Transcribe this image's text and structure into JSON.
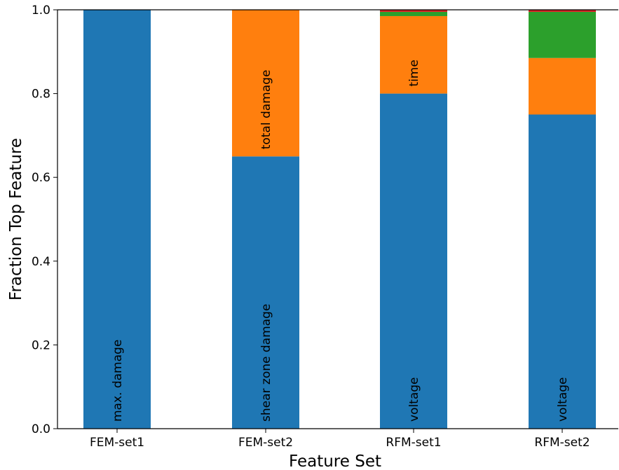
{
  "chart_data": {
    "type": "bar",
    "stacked": true,
    "xlabel": "Feature Set",
    "ylabel": "Fraction Top Feature",
    "ylim": [
      0,
      1.0
    ],
    "yticks": [
      "0.0",
      "0.2",
      "0.4",
      "0.6",
      "0.8",
      "1.0"
    ],
    "categories": [
      "FEM-set1",
      "FEM-set2",
      "RFM-set1",
      "RFM-set2"
    ],
    "colors": [
      "#1f77b4",
      "#ff7f0e",
      "#2ca02c",
      "#d62728"
    ],
    "series": [
      {
        "values": [
          1.0,
          0.65,
          0.8,
          0.75
        ]
      },
      {
        "values": [
          0.0,
          0.35,
          0.185,
          0.135
        ]
      },
      {
        "values": [
          0.0,
          0.0,
          0.01,
          0.11
        ]
      },
      {
        "values": [
          0.0,
          0.0,
          0.005,
          0.005
        ]
      }
    ],
    "bar_labels": [
      {
        "category": "FEM-set1",
        "series": 0,
        "text": "max. damage"
      },
      {
        "category": "FEM-set2",
        "series": 0,
        "text": "shear zone damage"
      },
      {
        "category": "FEM-set2",
        "series": 1,
        "text": "total damage"
      },
      {
        "category": "RFM-set1",
        "series": 0,
        "text": "voltage"
      },
      {
        "category": "RFM-set1",
        "series": 1,
        "text": "time"
      },
      {
        "category": "RFM-set2",
        "series": 0,
        "text": "voltage"
      }
    ],
    "grid": false,
    "legend": false
  }
}
